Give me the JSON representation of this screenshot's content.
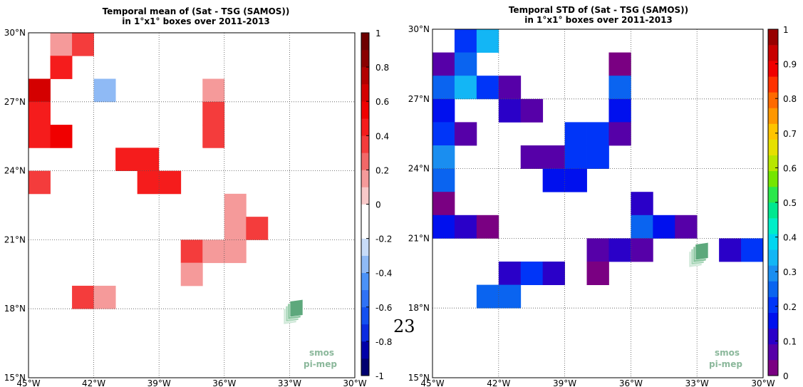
{
  "page": {
    "page_number": "23"
  },
  "logo": {
    "line1": "smos",
    "line2": "pi-mep"
  },
  "colors": {
    "mean_scale": [
      "#000070",
      "#0000a8",
      "#0a2be0",
      "#1350f0",
      "#2f72f5",
      "#4b92f7",
      "#8fbaf5",
      "#c8dcf8",
      "#ffffff",
      "#ffffff",
      "#f8c9c9",
      "#f59a9a",
      "#f26868",
      "#f43c3c",
      "#f51c1c",
      "#f00000",
      "#d40000",
      "#b30000",
      "#8a0000",
      "#6e0000"
    ],
    "std_scale": [
      "#7a0082",
      "#5600a8",
      "#2a00c8",
      "#0010ee",
      "#0035f8",
      "#0a64f0",
      "#1a8ef0",
      "#13b6f5",
      "#00d6f0",
      "#00eec8",
      "#00e890",
      "#2be84a",
      "#74e600",
      "#b8e600",
      "#e6e000",
      "#ffc400",
      "#ff9700",
      "#ff6a00",
      "#ff3200",
      "#f00000",
      "#c80000",
      "#980000"
    ]
  },
  "chart_data": [
    {
      "type": "heatmap",
      "title": "Temporal mean of (Sat - TSG (SAMOS))",
      "subtitle": "in 1°x1° boxes over 2011-2013",
      "xlabel": "",
      "ylabel": "",
      "xlim": [
        -45,
        -30
      ],
      "ylim": [
        15,
        30
      ],
      "x_ticks": [
        "45°W",
        "42°W",
        "39°W",
        "36°W",
        "33°W",
        "30°W"
      ],
      "y_ticks": [
        "15°N",
        "18°N",
        "21°N",
        "24°N",
        "27°N",
        "30°N"
      ],
      "grid": true,
      "colorbar": {
        "range": [
          -1,
          1
        ],
        "ticks": [
          "1",
          "0.8",
          "0.6",
          "0.4",
          "0.2",
          "0",
          "-0.2",
          "-0.4",
          "-0.6",
          "-0.8",
          "-1"
        ]
      },
      "cells_lon_lat_value": [
        [
          -44,
          29,
          0.15
        ],
        [
          -43,
          29,
          0.3
        ],
        [
          -44,
          28,
          0.4
        ],
        [
          -45,
          27,
          0.6
        ],
        [
          -42,
          27,
          -0.4
        ],
        [
          -37,
          27,
          0.15
        ],
        [
          -45,
          26,
          0.4
        ],
        [
          -37,
          26,
          0.3
        ],
        [
          -45,
          25,
          0.4
        ],
        [
          -44,
          25,
          0.5
        ],
        [
          -37,
          25,
          0.3
        ],
        [
          -41,
          24,
          0.4
        ],
        [
          -40,
          24,
          0.4
        ],
        [
          -39,
          24,
          -0.15
        ],
        [
          -38,
          24,
          -0.15
        ],
        [
          -45,
          23,
          0.3
        ],
        [
          -40,
          23,
          0.4
        ],
        [
          -39,
          23,
          0.4
        ],
        [
          -36,
          22,
          0.15
        ],
        [
          -36,
          21,
          0.15
        ],
        [
          -35,
          21,
          0.3
        ],
        [
          -45,
          21,
          -0.15
        ],
        [
          -44,
          21,
          -0.15
        ],
        [
          -38,
          20,
          0.3
        ],
        [
          -37,
          20,
          0.15
        ],
        [
          -36,
          20,
          0.15
        ],
        [
          -38,
          19,
          0.15
        ],
        [
          -43,
          18,
          0.3
        ],
        [
          -42,
          18,
          0.15
        ]
      ]
    },
    {
      "type": "heatmap",
      "title": "Temporal STD of (Sat - TSG (SAMOS))",
      "subtitle": "in 1°x1° boxes over 2011-2013",
      "xlabel": "",
      "ylabel": "",
      "xlim": [
        -45,
        -30
      ],
      "ylim": [
        15,
        30
      ],
      "x_ticks": [
        "45°W",
        "42°W",
        "39°W",
        "36°W",
        "33°W",
        "30°W"
      ],
      "y_ticks": [
        "15°N",
        "18°N",
        "21°N",
        "24°N",
        "27°N",
        "30°N"
      ],
      "grid": true,
      "colorbar": {
        "range": [
          0,
          1
        ],
        "ticks": [
          "1",
          "0.9",
          "0.8",
          "0.7",
          "0.6",
          "0.5",
          "0.4",
          "0.3",
          "0.2",
          "0.1",
          "0"
        ]
      },
      "cells_lon_lat_value": [
        [
          -44,
          29,
          0.2
        ],
        [
          -43,
          29,
          0.32
        ],
        [
          -45,
          28,
          0.05
        ],
        [
          -44,
          28,
          0.25
        ],
        [
          -37,
          28,
          0.03
        ],
        [
          -45,
          27,
          0.25
        ],
        [
          -44,
          27,
          0.32
        ],
        [
          -43,
          27,
          0.2
        ],
        [
          -42,
          27,
          0.05
        ],
        [
          -37,
          27,
          0.25
        ],
        [
          -45,
          26,
          0.17
        ],
        [
          -42,
          26,
          0.13
        ],
        [
          -41,
          26,
          0.05
        ],
        [
          -37,
          26,
          0.17
        ],
        [
          -45,
          25,
          0.2
        ],
        [
          -44,
          25,
          0.05
        ],
        [
          -39,
          25,
          0.2
        ],
        [
          -38,
          25,
          0.2
        ],
        [
          -37,
          25,
          0.05
        ],
        [
          -45,
          24,
          0.3
        ],
        [
          -41,
          24,
          0.05
        ],
        [
          -40,
          24,
          0.05
        ],
        [
          -39,
          24,
          0.2
        ],
        [
          -38,
          24,
          0.2
        ],
        [
          -45,
          23,
          0.25
        ],
        [
          -40,
          23,
          0.17
        ],
        [
          -39,
          23,
          0.17
        ],
        [
          -45,
          22,
          0.03
        ],
        [
          -36,
          22,
          0.13
        ],
        [
          -45,
          21,
          0.15
        ],
        [
          -44,
          21,
          0.1
        ],
        [
          -43,
          21,
          0.03
        ],
        [
          -36,
          21,
          0.25
        ],
        [
          -35,
          21,
          0.17
        ],
        [
          -34,
          21,
          0.07
        ],
        [
          -38,
          20,
          0.07
        ],
        [
          -37,
          20,
          0.1
        ],
        [
          -36,
          20,
          0.07
        ],
        [
          -32,
          20,
          0.1
        ],
        [
          -31,
          20,
          0.2
        ],
        [
          -42,
          19,
          0.1
        ],
        [
          -41,
          19,
          0.2
        ],
        [
          -40,
          19,
          0.1
        ],
        [
          -38,
          19,
          0.03
        ],
        [
          -43,
          18,
          0.25
        ],
        [
          -42,
          18,
          0.25
        ]
      ]
    }
  ]
}
